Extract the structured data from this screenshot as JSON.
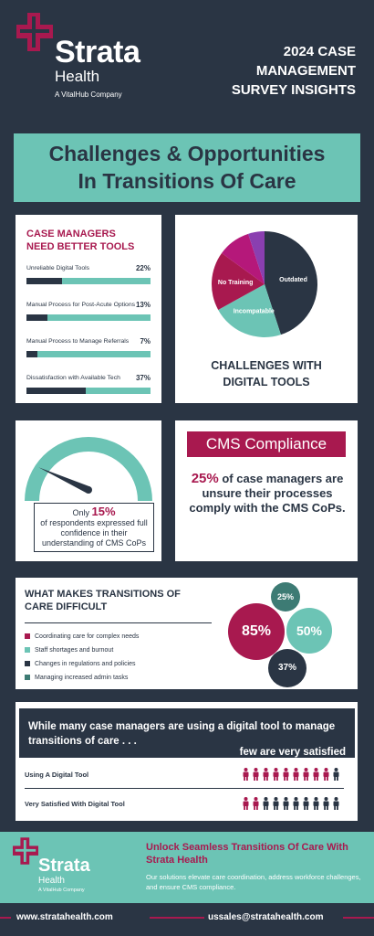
{
  "header": {
    "brand": "Strata",
    "brand_sub": "Health",
    "brand_tag": "A VitalHub Company",
    "survey_lines": [
      "2024 CASE",
      "MANAGEMENT",
      "SURVEY INSIGHTS"
    ]
  },
  "banner": {
    "line1": "Challenges & Opportunities",
    "line2": "In Transitions Of Care"
  },
  "tools": {
    "title_line1": "CASE MANAGERS",
    "title_line2": "NEED BETTER TOOLS",
    "rows": [
      {
        "label": "Unreliable Digital Tools",
        "pct_label": "22%",
        "value": 22
      },
      {
        "label": "Manual Process for Post-Acute Options",
        "pct_label": "13%",
        "value": 13
      },
      {
        "label": "Manual Process to Manage Referrals",
        "pct_label": "7%",
        "value": 7
      },
      {
        "label": "Dissatisfaction with Available Tech",
        "pct_label": "37%",
        "value": 37
      }
    ]
  },
  "chart_data": {
    "type": "pie",
    "title": "CHALLENGES WITH DIGITAL TOOLS",
    "slices": [
      {
        "label": "Outdated",
        "value": 45,
        "color": "#2a3544"
      },
      {
        "label": "Incompatable",
        "value": 22,
        "color": "#6cc4b5"
      },
      {
        "label": "No Training",
        "value": 18,
        "color": "#a8194f"
      },
      {
        "label": "",
        "value": 10,
        "color": "#b5187a"
      },
      {
        "label": "",
        "value": 5,
        "color": "#8a3fb0"
      }
    ]
  },
  "challenges": {
    "title_line1": "CHALLENGES WITH",
    "title_line2": "DIGITAL TOOLS"
  },
  "gauge": {
    "value_pct": 15,
    "text_pre": "Only",
    "big": "15%",
    "text_rest": "of respondents expressed full confidence in their understanding of CMS CoPs"
  },
  "cms": {
    "heading": "CMS Compliance",
    "big": "25%",
    "text": "of case managers are unsure their processes comply with the CMS CoPs."
  },
  "difficult": {
    "title_line1": "WHAT MAKES TRANSITIONS OF",
    "title_line2": "CARE DIFFICULT",
    "items": [
      {
        "label": "Coordinating care for complex needs",
        "color": "#a8194f"
      },
      {
        "label": "Staff shortages and burnout",
        "color": "#6cc4b5"
      },
      {
        "label": "Changes in regulations and policies",
        "color": "#2a3544"
      },
      {
        "label": "Managing increased admin tasks",
        "color": "#3d7b74"
      }
    ],
    "bubbles": [
      "85%",
      "50%",
      "25%",
      "37%"
    ]
  },
  "satisfaction": {
    "line1": "While many case managers are using a digital tool to manage transitions of care . . .",
    "line2": "few are very satisfied",
    "rows": [
      {
        "label": "Using A Digital Tool",
        "highlighted": 9,
        "total": 10
      },
      {
        "label": "Very Satisfied With Digital Tool",
        "highlighted": 2,
        "total": 10
      }
    ]
  },
  "footer": {
    "brand": "Strata",
    "brand_sub": "Health",
    "brand_tag": "A VitalHub Company",
    "heading": "Unlock Seamless Transitions Of Care With Strata Health",
    "body": "Our solutions elevate care coordination, address workforce challenges, and ensure CMS compliance.",
    "website": "www.stratahealth.com",
    "email": "ussales@stratahealth.com"
  }
}
